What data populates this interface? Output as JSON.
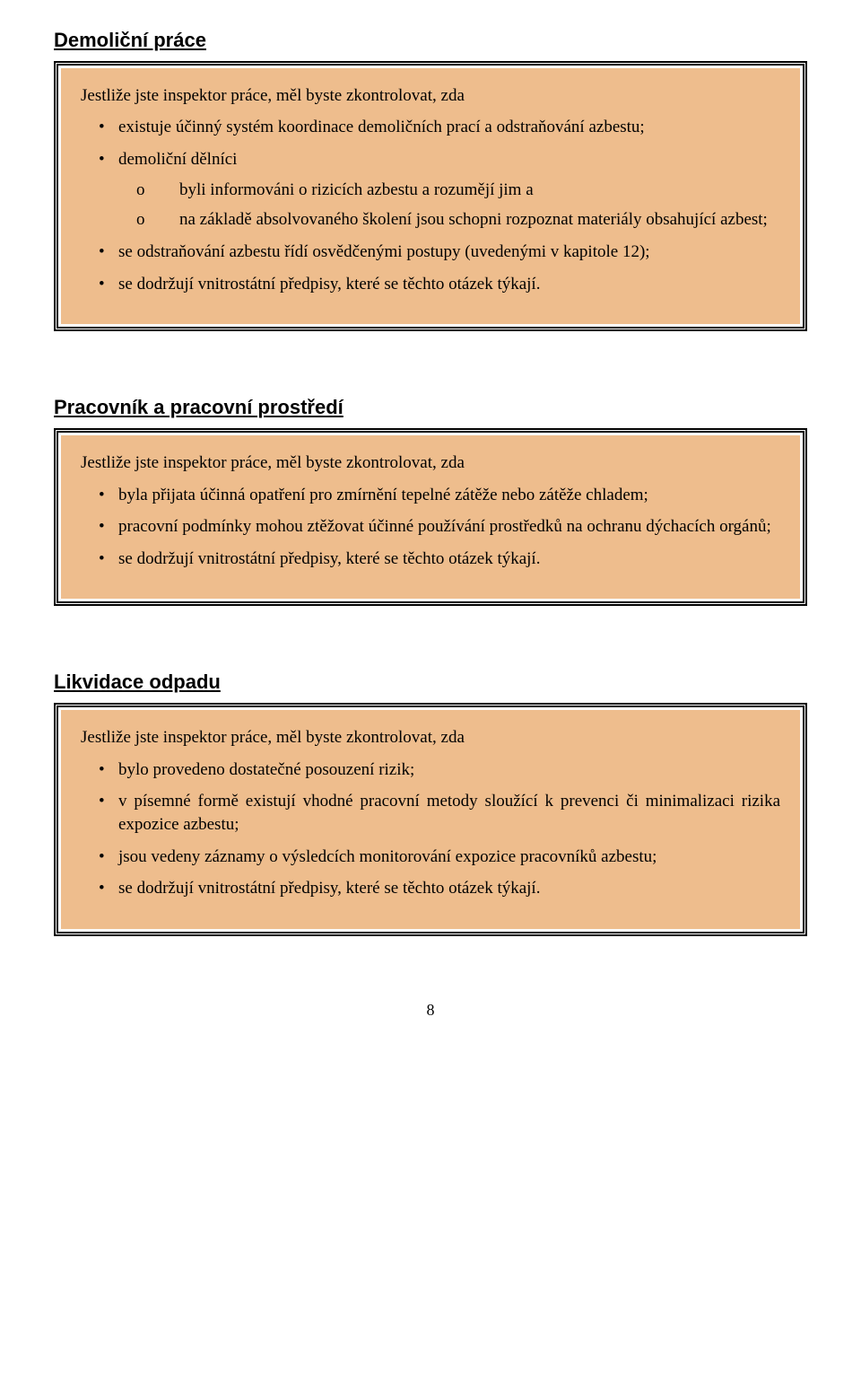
{
  "colors": {
    "box_bg": "#eebd8d",
    "page_bg": "#ffffff",
    "text": "#000000",
    "border": "#000000"
  },
  "typography": {
    "title_font": "Arial",
    "title_size_pt": 16,
    "body_font": "Times New Roman",
    "body_size_pt": 14
  },
  "page_number": "8",
  "sections": [
    {
      "title": "Demoliční práce",
      "intro": "Jestliže jste inspektor práce, měl byste zkontrolovat, zda",
      "bullets": [
        {
          "text": "existuje účinný systém koordinace demoličních prací a odstraňování azbestu;"
        },
        {
          "text": "demoliční dělníci",
          "sub": [
            {
              "marker": "o",
              "text": "byli informováni o rizicích azbestu a rozumějí jim a"
            },
            {
              "marker": "o",
              "text": "na základě absolvovaného školení jsou schopni rozpoznat materiály obsahující azbest;"
            }
          ]
        },
        {
          "text": "se odstraňování azbestu řídí osvědčenými postupy (uvedenými v kapitole 12);"
        },
        {
          "text": "se dodržují vnitrostátní předpisy, které se těchto otázek týkají."
        }
      ]
    },
    {
      "title": "Pracovník a pracovní prostředí",
      "intro": "Jestliže jste inspektor práce, měl byste zkontrolovat, zda",
      "bullets": [
        {
          "text": "byla přijata účinná opatření pro zmírnění tepelné zátěže nebo zátěže chladem;"
        },
        {
          "text": "pracovní podmínky mohou ztěžovat účinné používání prostředků na ochranu dýchacích orgánů;"
        },
        {
          "text": "se dodržují vnitrostátní předpisy, které se těchto otázek týkají."
        }
      ]
    },
    {
      "title": "Likvidace odpadu",
      "intro": "Jestliže jste inspektor práce, měl byste zkontrolovat, zda",
      "bullets": [
        {
          "text": "bylo provedeno dostatečné posouzení rizik;"
        },
        {
          "text": "v písemné formě existují vhodné pracovní metody sloužící k prevenci či minimalizaci rizika expozice azbestu;"
        },
        {
          "text": "jsou vedeny záznamy o výsledcích monitorování expozice pracovníků azbestu;"
        },
        {
          "text": "se dodržují vnitrostátní předpisy, které se těchto otázek týkají."
        }
      ]
    }
  ]
}
